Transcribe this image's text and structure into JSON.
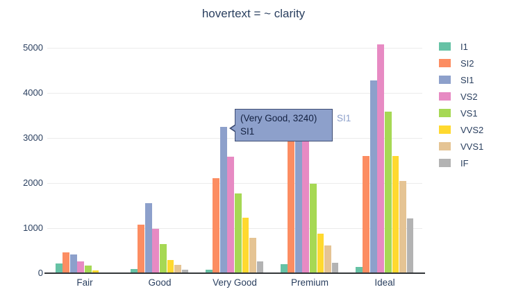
{
  "title": "hovertext = ~ clarity",
  "chart_data": {
    "type": "bar",
    "mode": "grouped",
    "title": "hovertext = ~ clarity",
    "xlabel": "",
    "ylabel": "",
    "categories": [
      "Fair",
      "Good",
      "Very Good",
      "Premium",
      "Ideal"
    ],
    "series": [
      {
        "name": "I1",
        "color": "#66c2a5",
        "values": [
          210,
          96,
          84,
          205,
          146
        ]
      },
      {
        "name": "SI2",
        "color": "#fc8d62",
        "values": [
          466,
          1081,
          2100,
          2949,
          2598
        ]
      },
      {
        "name": "SI1",
        "color": "#8da0cb",
        "values": [
          408,
          1560,
          3240,
          3575,
          4282
        ]
      },
      {
        "name": "VS2",
        "color": "#e78ac3",
        "values": [
          261,
          978,
          2591,
          3357,
          5071
        ]
      },
      {
        "name": "VS1",
        "color": "#a6d854",
        "values": [
          170,
          648,
          1775,
          1989,
          3589
        ]
      },
      {
        "name": "VVS2",
        "color": "#ffd92f",
        "values": [
          69,
          286,
          1235,
          870,
          2606
        ]
      },
      {
        "name": "VVS1",
        "color": "#e5c494",
        "values": [
          17,
          186,
          789,
          616,
          2047
        ]
      },
      {
        "name": "IF",
        "color": "#b3b3b3",
        "values": [
          9,
          71,
          268,
          230,
          1212
        ]
      }
    ],
    "yticks": [
      0,
      1000,
      2000,
      3000,
      4000,
      5000
    ],
    "ylim": [
      0,
      5215
    ],
    "grid": "horizontal-only",
    "legend_position": "right",
    "gridline_color": "#ebebeb",
    "axis_line_color": "#333639",
    "text_color": "#2a3f5f"
  },
  "tooltip": {
    "line1": "(Very Good, 3240)",
    "line2": "SI1",
    "side_label": "SI1",
    "bg_color": "#8da0cb",
    "border_color": "#3d4c73",
    "text_color": "#132040"
  }
}
